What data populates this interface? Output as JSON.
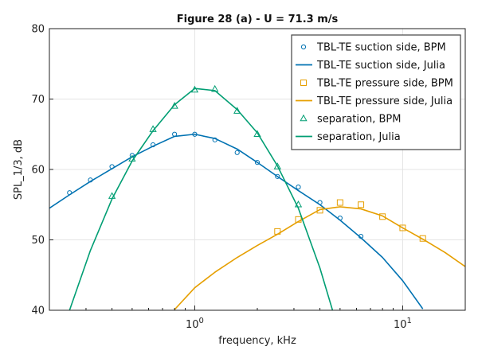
{
  "chart_data": {
    "type": "line",
    "title": "Figure 28 (a) - U = 71.3 m/s",
    "xlabel": "frequency, kHz",
    "ylabel": "SPL_1/3, dB",
    "xscale": "log",
    "xlim": [
      0.2,
      20
    ],
    "ylim": [
      40,
      80
    ],
    "x_ticks": [
      {
        "value": 1,
        "base": "10",
        "exp": "0"
      },
      {
        "value": 10,
        "base": "10",
        "exp": "1"
      }
    ],
    "y_ticks": [
      {
        "value": 40,
        "label": "40"
      },
      {
        "value": 50,
        "label": "50"
      },
      {
        "value": 60,
        "label": "60"
      },
      {
        "value": 70,
        "label": "70"
      },
      {
        "value": 80,
        "label": "80"
      }
    ],
    "grid": true,
    "legend_position": "top-right",
    "series": [
      {
        "name": "TBL-TE suction side, BPM",
        "kind": "markers",
        "marker": "circle",
        "color": "#0072b2",
        "x": [
          0.25,
          0.315,
          0.4,
          0.5,
          0.63,
          0.8,
          1.0,
          1.25,
          1.6,
          2.0,
          2.5,
          3.15,
          4.0,
          5.0,
          6.3
        ],
        "y": [
          56.7,
          58.5,
          60.4,
          62.0,
          63.5,
          65.0,
          65.0,
          64.2,
          62.4,
          61.0,
          59.0,
          57.5,
          55.3,
          53.1,
          50.5
        ]
      },
      {
        "name": "TBL-TE suction side, Julia",
        "kind": "line",
        "color": "#0072b2",
        "x": [
          0.2,
          0.25,
          0.315,
          0.4,
          0.5,
          0.63,
          0.8,
          1.0,
          1.25,
          1.6,
          2.0,
          2.5,
          3.15,
          4.0,
          5.0,
          6.3,
          8.0,
          10.0,
          12.5
        ],
        "y": [
          54.5,
          56.4,
          58.3,
          60.1,
          61.8,
          63.3,
          64.7,
          65.0,
          64.4,
          62.9,
          61.0,
          59.0,
          57.0,
          55.0,
          52.8,
          50.3,
          47.5,
          44.2,
          40.2
        ]
      },
      {
        "name": "TBL-TE pressure side, BPM",
        "kind": "markers",
        "marker": "square",
        "color": "#e69f00",
        "x": [
          2.5,
          3.15,
          4.0,
          5.0,
          6.3,
          8.0,
          10.0,
          12.5
        ],
        "y": [
          51.2,
          52.9,
          54.2,
          55.3,
          55.0,
          53.3,
          51.7,
          50.2
        ]
      },
      {
        "name": "TBL-TE pressure side, Julia",
        "kind": "line",
        "color": "#e69f00",
        "x": [
          0.8,
          1.0,
          1.25,
          1.6,
          2.0,
          2.5,
          3.15,
          4.0,
          5.0,
          6.3,
          8.0,
          10.0,
          12.5,
          16.0,
          20.0
        ],
        "y": [
          40.1,
          43.2,
          45.4,
          47.5,
          49.2,
          50.8,
          52.6,
          54.3,
          54.7,
          54.4,
          53.4,
          51.7,
          50.1,
          48.2,
          46.2
        ]
      },
      {
        "name": "separation, BPM",
        "kind": "markers",
        "marker": "triangle",
        "color": "#009e73",
        "x": [
          0.4,
          0.5,
          0.63,
          0.8,
          1.0,
          1.25,
          1.6,
          2.0,
          2.5,
          3.15
        ],
        "y": [
          56.2,
          61.5,
          65.7,
          69.0,
          71.3,
          71.4,
          68.3,
          65.0,
          60.4,
          55.0
        ]
      },
      {
        "name": "separation, Julia",
        "kind": "line",
        "color": "#009e73",
        "x": [
          0.25,
          0.315,
          0.4,
          0.5,
          0.63,
          0.8,
          1.0,
          1.25,
          1.6,
          2.0,
          2.5,
          3.15,
          4.0,
          4.6
        ],
        "y": [
          40.0,
          48.5,
          55.8,
          61.2,
          65.5,
          69.2,
          71.5,
          71.2,
          68.5,
          65.2,
          60.5,
          54.5,
          46.0,
          40.0
        ]
      }
    ]
  }
}
